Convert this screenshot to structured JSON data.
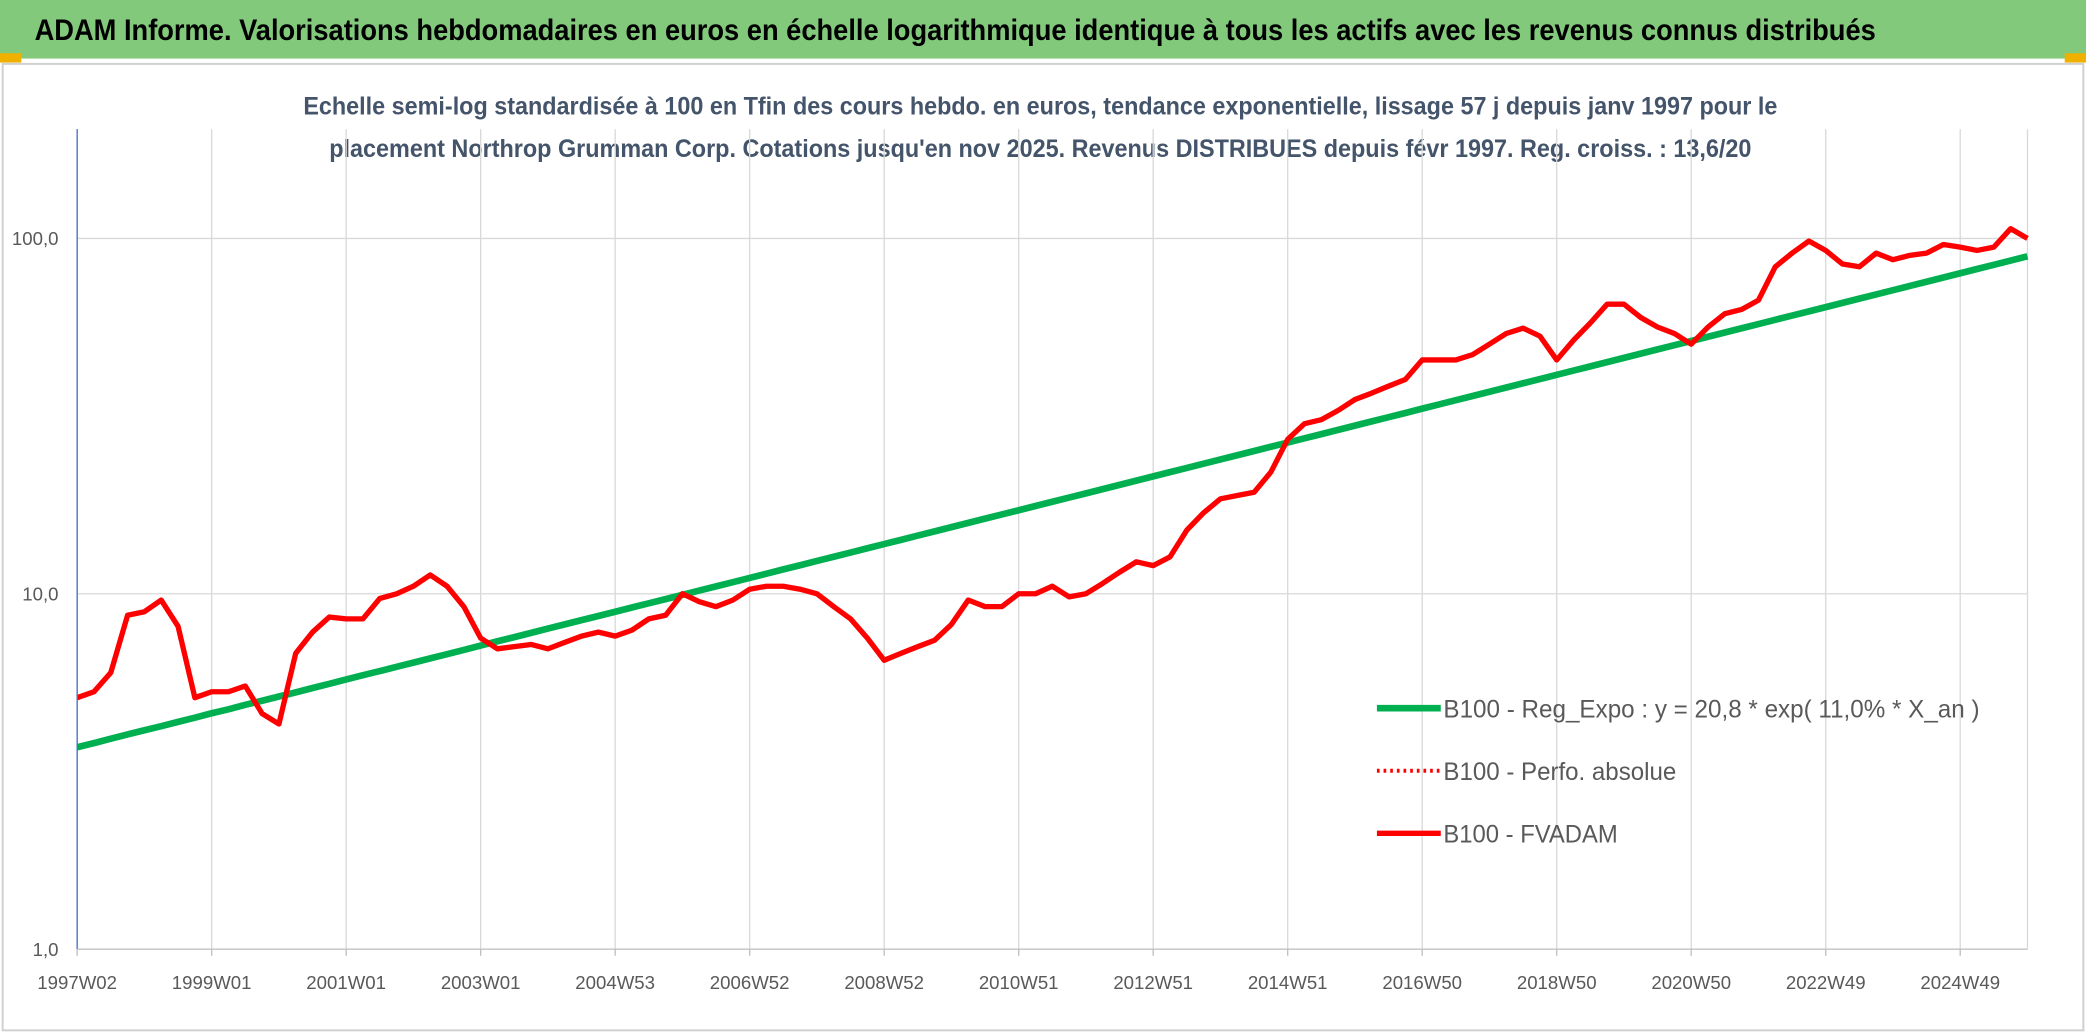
{
  "header": {
    "title": "ADAM Informe. Valorisations hebdomadaires en euros en échelle logarithmique identique à tous les actifs avec les revenus connus distribués"
  },
  "chart_data": {
    "type": "line",
    "subtitle_lines": [
      "Echelle semi-log standardisée à 100 en Tfin des cours hebdo. en euros, tendance exponentielle, lissage 57 j depuis janv 1997 pour le",
      "placement Northrop Grumman Corp. Cotations jusqu'en nov 2025. Revenus DISTRIBUES depuis févr 1997. Reg. croiss. : 13,6/20"
    ],
    "log_scale": true,
    "grid": true,
    "legend": "right",
    "ylim": [
      1,
      203
    ],
    "yticks": [
      {
        "value": 1,
        "label": "1,0"
      },
      {
        "value": 10,
        "label": "10,0"
      },
      {
        "value": 100,
        "label": "100,0"
      }
    ],
    "categories": [
      "1997W02",
      null,
      null,
      null,
      null,
      null,
      null,
      null,
      "1999W01",
      null,
      null,
      null,
      null,
      null,
      null,
      null,
      "2001W01",
      null,
      null,
      null,
      null,
      null,
      null,
      null,
      "2003W01",
      null,
      null,
      null,
      null,
      null,
      null,
      null,
      "2004W53",
      null,
      null,
      null,
      null,
      null,
      null,
      null,
      "2006W52",
      null,
      null,
      null,
      null,
      null,
      null,
      null,
      "2008W52",
      null,
      null,
      null,
      null,
      null,
      null,
      null,
      "2010W51",
      null,
      null,
      null,
      null,
      null,
      null,
      null,
      "2012W51",
      null,
      null,
      null,
      null,
      null,
      null,
      null,
      "2014W51",
      null,
      null,
      null,
      null,
      null,
      null,
      null,
      "2016W50",
      null,
      null,
      null,
      null,
      null,
      null,
      null,
      "2018W50",
      null,
      null,
      null,
      null,
      null,
      null,
      null,
      "2020W50",
      null,
      null,
      null,
      null,
      null,
      null,
      null,
      "2022W49",
      null,
      null,
      null,
      null,
      null,
      null,
      null,
      "2024W49",
      null,
      null,
      null,
      null
    ],
    "series": [
      {
        "name": "B100 - Reg_Expo : y = 20,8 * exp( 11,0% *  X_an )",
        "color": "#00b050",
        "style": "solid",
        "values": [
          3.7,
          3.8,
          3.91,
          4.02,
          4.13,
          4.24,
          4.36,
          4.48,
          4.61,
          4.73,
          4.87,
          5.0,
          5.14,
          5.28,
          5.43,
          5.58,
          5.74,
          5.9,
          6.06,
          6.23,
          6.4,
          6.58,
          6.76,
          6.95,
          7.15,
          7.35,
          7.55,
          7.76,
          7.98,
          8.2,
          8.43,
          8.66,
          8.9,
          9.15,
          9.4,
          9.66,
          9.93,
          10.21,
          10.49,
          10.78,
          11.08,
          11.39,
          11.71,
          12.03,
          12.37,
          12.71,
          13.06,
          13.43,
          13.8,
          14.18,
          14.58,
          14.98,
          15.4,
          15.83,
          16.27,
          16.72,
          17.18,
          17.66,
          18.15,
          18.65,
          19.17,
          19.7,
          20.25,
          20.81,
          21.4,
          21.99,
          22.6,
          23.23,
          23.88,
          24.54,
          25.22,
          25.92,
          26.64,
          27.38,
          28.14,
          28.92,
          29.73,
          30.55,
          31.4,
          32.27,
          33.18,
          34.1,
          35.05,
          36.02,
          37.02,
          38.05,
          39.11,
          40.19,
          41.32,
          42.47,
          43.65,
          44.86,
          46.11,
          47.39,
          48.71,
          50.06,
          51.45,
          52.88,
          54.35,
          55.86,
          57.41,
          59.01,
          60.65,
          62.34,
          64.07,
          65.85,
          67.68,
          69.56,
          71.49,
          73.48,
          75.52,
          77.62,
          79.78,
          82.0,
          84.28,
          86.62,
          89.03
        ]
      },
      {
        "name": "B100 - Perfo. absolue",
        "color": "#ff0000",
        "style": "dotted",
        "values": [
          5.1,
          5.3,
          6.0,
          8.7,
          8.9,
          9.6,
          8.1,
          5.1,
          5.3,
          5.3,
          5.5,
          4.6,
          4.3,
          6.8,
          7.8,
          8.6,
          8.5,
          8.5,
          9.7,
          10.0,
          10.5,
          11.3,
          10.5,
          9.2,
          7.5,
          7.0,
          7.1,
          7.2,
          7.0,
          7.3,
          7.6,
          7.8,
          7.6,
          7.9,
          8.5,
          8.7,
          10.0,
          9.5,
          9.2,
          9.6,
          10.3,
          10.5,
          10.5,
          10.3,
          10.0,
          9.2,
          8.5,
          7.5,
          6.5,
          6.8,
          7.1,
          7.4,
          8.2,
          9.6,
          9.2,
          9.2,
          10.0,
          10.0,
          10.5,
          9.8,
          10.0,
          10.7,
          11.5,
          12.3,
          12.0,
          12.7,
          15.1,
          16.9,
          18.5,
          18.9,
          19.3,
          22.0,
          27.2,
          30.1,
          30.9,
          32.8,
          35.2,
          36.7,
          38.4,
          40.1,
          45.5,
          45.5,
          45.5,
          47.1,
          50.4,
          54.0,
          55.9,
          53.1,
          45.5,
          51.7,
          57.8,
          65.3,
          65.3,
          59.9,
          56.3,
          54.0,
          50.4,
          56.3,
          61.4,
          63.1,
          67.0,
          83.2,
          90.9,
          98.3,
          92.5,
          84.7,
          83.2,
          90.9,
          87.1,
          89.6,
          90.9,
          96.1,
          94.5,
          92.5,
          94.5,
          106.5,
          100.0
        ]
      },
      {
        "name": "B100 - FVADAM",
        "color": "#ff0000",
        "style": "solid",
        "values": [
          5.1,
          5.3,
          6.0,
          8.7,
          8.9,
          9.6,
          8.1,
          5.1,
          5.3,
          5.3,
          5.5,
          4.6,
          4.3,
          6.8,
          7.8,
          8.6,
          8.5,
          8.5,
          9.7,
          10.0,
          10.5,
          11.3,
          10.5,
          9.2,
          7.5,
          7.0,
          7.1,
          7.2,
          7.0,
          7.3,
          7.6,
          7.8,
          7.6,
          7.9,
          8.5,
          8.7,
          10.0,
          9.5,
          9.2,
          9.6,
          10.3,
          10.5,
          10.5,
          10.3,
          10.0,
          9.2,
          8.5,
          7.5,
          6.5,
          6.8,
          7.1,
          7.4,
          8.2,
          9.6,
          9.2,
          9.2,
          10.0,
          10.0,
          10.5,
          9.8,
          10.0,
          10.7,
          11.5,
          12.3,
          12.0,
          12.7,
          15.1,
          16.9,
          18.5,
          18.9,
          19.3,
          22.0,
          27.2,
          30.1,
          30.9,
          32.8,
          35.2,
          36.7,
          38.4,
          40.1,
          45.5,
          45.5,
          45.5,
          47.1,
          50.4,
          54.0,
          55.9,
          53.1,
          45.5,
          51.7,
          57.8,
          65.3,
          65.3,
          59.9,
          56.3,
          54.0,
          50.4,
          56.3,
          61.4,
          63.1,
          67.0,
          83.2,
          90.9,
          98.3,
          92.5,
          84.7,
          83.2,
          90.9,
          87.1,
          89.6,
          90.9,
          96.1,
          94.5,
          92.5,
          94.5,
          106.5,
          100.0
        ]
      }
    ]
  }
}
